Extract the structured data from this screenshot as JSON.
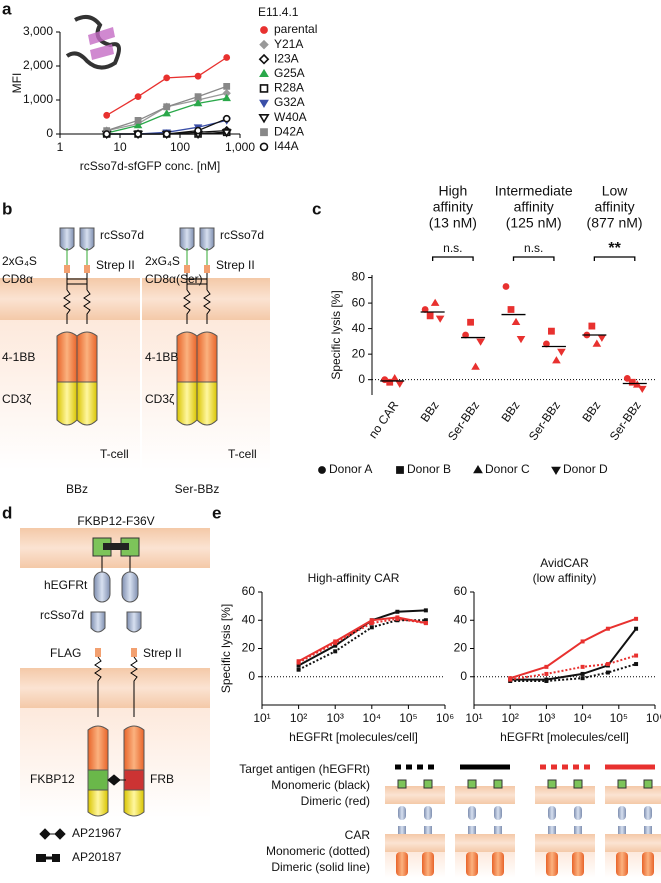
{
  "panel_labels": [
    "a",
    "b",
    "c",
    "d",
    "e"
  ],
  "chart_data": [
    {
      "type": "line",
      "legend_title": "E11.4.1",
      "ylabel": "MFI",
      "xlabel": "rcSso7d-sfGFP conc. [nM]",
      "xlog": true,
      "xlim": [
        1,
        1000
      ],
      "xticks": [
        1,
        10,
        100,
        {
          "value": 1000,
          "label": "1,000"
        }
      ],
      "ylim": [
        0,
        3000
      ],
      "yticks": [
        0,
        {
          "value": 1000,
          "label": "1,000"
        },
        {
          "value": 2000,
          "label": "2,000"
        },
        {
          "value": 3000,
          "label": "3,000"
        }
      ],
      "x": [
        6,
        20,
        60,
        200,
        600
      ],
      "series": [
        {
          "name": "parental",
          "color": "#e8312f",
          "marker": "circle",
          "values": [
            550,
            1100,
            1650,
            1700,
            2250
          ]
        },
        {
          "name": "Y21A",
          "color": "#999999",
          "marker": "diamond",
          "values": [
            100,
            300,
            800,
            1000,
            1200
          ]
        },
        {
          "name": "I23A",
          "color": "#111111",
          "marker": "diamond-open",
          "values": [
            0,
            0,
            0,
            50,
            100
          ]
        },
        {
          "name": "G25A",
          "color": "#2aa84a",
          "marker": "triangle",
          "values": [
            30,
            250,
            600,
            900,
            1050
          ]
        },
        {
          "name": "R28A",
          "color": "#111111",
          "marker": "square-open",
          "values": [
            0,
            0,
            0,
            0,
            50
          ]
        },
        {
          "name": "G32A",
          "color": "#3a4fa8",
          "marker": "triangle-down",
          "values": [
            0,
            0,
            50,
            200,
            400
          ]
        },
        {
          "name": "W40A",
          "color": "#111111",
          "marker": "triangle-down-open",
          "values": [
            0,
            0,
            0,
            0,
            50
          ]
        },
        {
          "name": "D42A",
          "color": "#888888",
          "marker": "square",
          "values": [
            100,
            400,
            800,
            1100,
            1400
          ]
        },
        {
          "name": "I44A",
          "color": "#111111",
          "marker": "circle-open",
          "values": [
            0,
            0,
            0,
            100,
            450
          ]
        }
      ]
    },
    {
      "type": "dot",
      "ylabel": "Specific lysis [%]",
      "color": "#e8312f",
      "categories": [
        "no CAR",
        "BBz",
        "Ser-BBz",
        "BBz",
        "Ser-BBz",
        "BBz",
        "Ser-BBz"
      ],
      "groups": [
        [
          "High",
          "affinity",
          "(13 nM)"
        ],
        [
          "Intermediate",
          "affinity",
          "(125 nM)"
        ],
        [
          "Low",
          "affinity",
          "(877 nM)"
        ]
      ],
      "significance": [
        "n.s.",
        "n.s.",
        "**"
      ],
      "ylim": [
        -12,
        82
      ],
      "yticks": [
        0,
        20,
        40,
        60,
        80
      ],
      "series": [
        {
          "name": "Donor A",
          "marker": "circle",
          "values": [
            0,
            55,
            35,
            73,
            28,
            35,
            1
          ]
        },
        {
          "name": "Donor B",
          "marker": "square",
          "values": [
            -2,
            50,
            45,
            55,
            38,
            42,
            -2
          ]
        },
        {
          "name": "Donor C",
          "marker": "triangle",
          "values": [
            1,
            60,
            10,
            45,
            15,
            28,
            -4
          ]
        },
        {
          "name": "Donor D",
          "marker": "triangle-down",
          "values": [
            -3,
            48,
            30,
            32,
            22,
            33,
            -7
          ]
        }
      ],
      "means": [
        -1,
        53,
        33,
        51,
        26,
        35,
        -3
      ]
    },
    {
      "type": "line",
      "title": [
        "High-affinity CAR"
      ],
      "ylabel": "Specific lysis [%]",
      "xlabel": "hEGFRt [molecules/cell]",
      "xlog": true,
      "xlim": [
        10,
        1000000
      ],
      "xticks": [
        {
          "value": 10,
          "label": "10¹"
        },
        {
          "value": 100,
          "label": "10²"
        },
        {
          "value": 1000,
          "label": "10³"
        },
        {
          "value": 10000,
          "label": "10⁴"
        },
        {
          "value": 100000,
          "label": "10⁵"
        },
        {
          "value": 1000000,
          "label": "10⁶"
        }
      ],
      "ylim": [
        -20,
        60
      ],
      "yticks": [
        0,
        20,
        40,
        60
      ],
      "x": [
        100,
        1000,
        10000,
        50000,
        300000
      ],
      "series": [
        {
          "color": "#111111",
          "dash": "solid",
          "values": [
            8,
            22,
            40,
            46,
            47
          ]
        },
        {
          "color": "#111111",
          "dash": "dotted",
          "values": [
            5,
            18,
            35,
            40,
            40
          ]
        },
        {
          "color": "#e8312f",
          "dash": "solid",
          "values": [
            11,
            25,
            40,
            42,
            38
          ]
        },
        {
          "color": "#e8312f",
          "dash": "dotted",
          "values": [
            10,
            24,
            38,
            41,
            38
          ]
        }
      ]
    },
    {
      "type": "line",
      "title": [
        "AvidCAR",
        "(low affinity)"
      ],
      "xlabel": "hEGFRt [molecules/cell]",
      "xlog": true,
      "xlim": [
        10,
        1000000
      ],
      "xticks": [
        {
          "value": 10,
          "label": "10¹"
        },
        {
          "value": 100,
          "label": "10²"
        },
        {
          "value": 1000,
          "label": "10³"
        },
        {
          "value": 10000,
          "label": "10⁴"
        },
        {
          "value": 100000,
          "label": "10⁵"
        },
        {
          "value": 1000000,
          "label": "10⁶"
        }
      ],
      "ylim": [
        -20,
        60
      ],
      "yticks": [
        0,
        20,
        40,
        60
      ],
      "x": [
        100,
        1000,
        10000,
        50000,
        300000
      ],
      "series": [
        {
          "color": "#111111",
          "dash": "solid",
          "values": [
            -2,
            -2,
            2,
            8,
            34
          ]
        },
        {
          "color": "#111111",
          "dash": "dotted",
          "values": [
            -3,
            -3,
            -1,
            3,
            9
          ]
        },
        {
          "color": "#e8312f",
          "dash": "solid",
          "values": [
            -1,
            7,
            25,
            34,
            41
          ]
        },
        {
          "color": "#e8312f",
          "dash": "dotted",
          "values": [
            -2,
            2,
            7,
            9,
            15
          ]
        }
      ]
    }
  ],
  "diagram_b": {
    "left": {
      "binder": "rcSso7d",
      "linker": "2xG₄S",
      "tag": "Strep II",
      "hinge": "CD8α",
      "costim": "4-1BB",
      "signal": "CD3ζ",
      "cell": "T-cell",
      "name": "BBz"
    },
    "right": {
      "binder": "rcSso7d",
      "linker": "2xG₄S",
      "tag": "Strep II",
      "hinge": "CD8α(Ser)",
      "costim": "4-1BB",
      "signal": "CD3ζ",
      "cell": "T-cell",
      "name": "Ser-BBz"
    }
  },
  "diagram_d": {
    "dimerizer": "FKBP12-F36V",
    "antigen": "hEGFRt",
    "binder": "rcSso7d",
    "tag1": "FLAG",
    "tag2": "Strep II",
    "left_domain": "FKBP12",
    "right_domain": "FRB",
    "ligand1": "AP21967",
    "ligand2": "AP20187"
  },
  "legend_e": {
    "target": [
      "Target antigen (hEGFRt)",
      "Monomeric (black)",
      "Dimeric (red)"
    ],
    "car": [
      "CAR",
      "Monomeric (dotted)",
      "Dimeric (solid line)"
    ]
  }
}
